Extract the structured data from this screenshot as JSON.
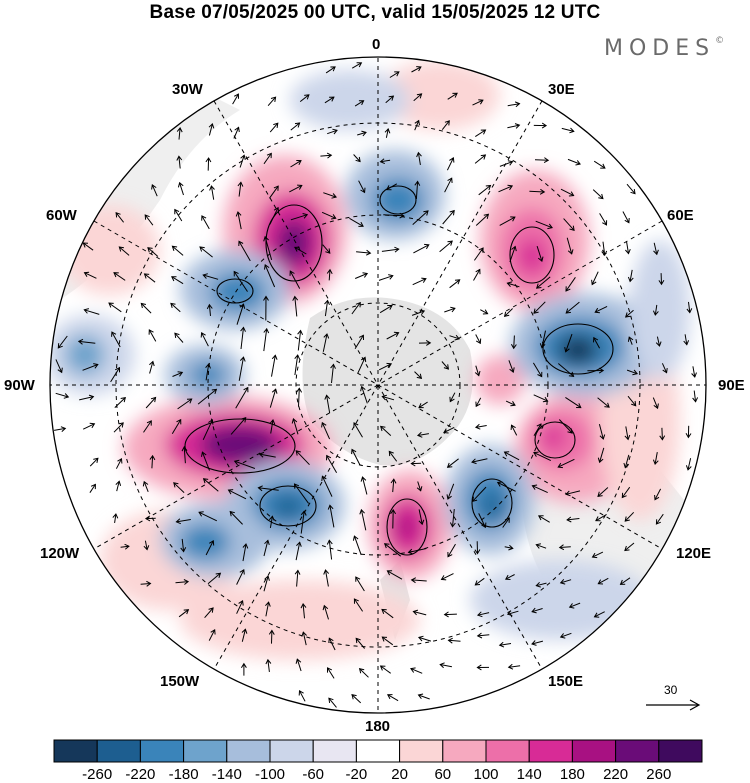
{
  "header": {
    "title": "Base 07/05/2025 00 UTC, valid 15/05/2025 12 UTC",
    "brand": "MODES",
    "brand_mark": "©"
  },
  "map": {
    "projection": "south-polar-stereographic",
    "longitude_labels": {
      "top": "0",
      "top_right": "30E",
      "upper_right": "60E",
      "right": "90E",
      "lower_right": "120E",
      "bottom_right": "150E",
      "bottom": "180",
      "bottom_left": "150W",
      "lower_left": "120W",
      "left": "90W",
      "upper_left": "60W",
      "top_left": "30W"
    },
    "reference_vector_label": "30"
  },
  "colorbar": {
    "labels": [
      "-260",
      "-220",
      "-180",
      "-140",
      "-100",
      "-60",
      "-20",
      "20",
      "60",
      "100",
      "140",
      "180",
      "220",
      "260"
    ],
    "colors": [
      "#15375a",
      "#1d5e90",
      "#3a84ba",
      "#6ea3cc",
      "#a7bedc",
      "#ccd6ea",
      "#e8e6f2",
      "#ffffff",
      "#fbd6d6",
      "#f6a9bf",
      "#ed6fa9",
      "#d82b96",
      "#a81182",
      "#6a0c78",
      "#3f0a5e"
    ]
  }
}
